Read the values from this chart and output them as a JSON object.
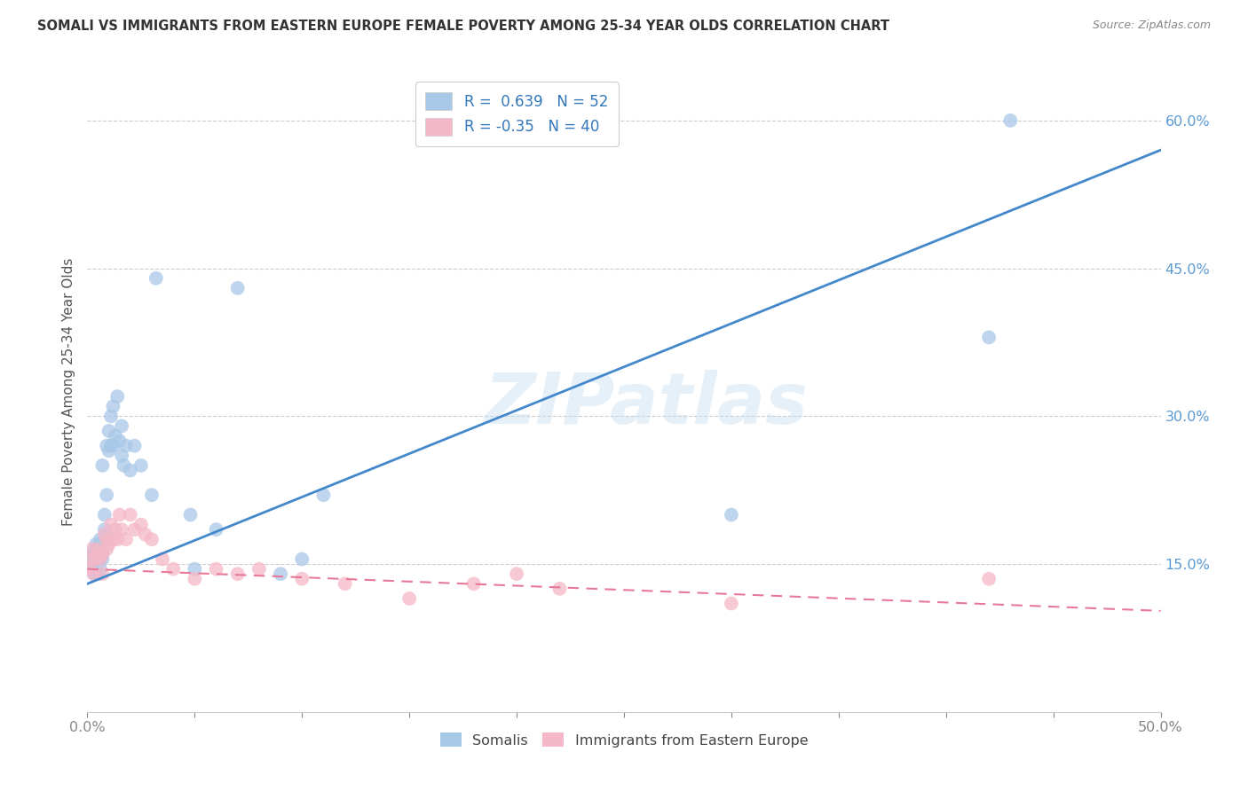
{
  "title": "SOMALI VS IMMIGRANTS FROM EASTERN EUROPE FEMALE POVERTY AMONG 25-34 YEAR OLDS CORRELATION CHART",
  "source": "Source: ZipAtlas.com",
  "ylabel": "Female Poverty Among 25-34 Year Olds",
  "y_ticks_right": [
    "15.0%",
    "30.0%",
    "45.0%",
    "60.0%"
  ],
  "y_ticks_right_vals": [
    0.15,
    0.3,
    0.45,
    0.6
  ],
  "legend_label1": "Somalis",
  "legend_label2": "Immigrants from Eastern Europe",
  "R1": 0.639,
  "N1": 52,
  "R2": -0.35,
  "N2": 40,
  "blue_color": "#a8c8e8",
  "pink_color": "#f4b8c8",
  "blue_line_color": "#4488cc",
  "pink_line_color": "#e87898",
  "watermark": "ZIPatlas",
  "background_color": "#ffffff",
  "somali_x": [
    0.001,
    0.001,
    0.002,
    0.003,
    0.003,
    0.004,
    0.004,
    0.004,
    0.005,
    0.005,
    0.005,
    0.006,
    0.006,
    0.006,
    0.006,
    0.007,
    0.007,
    0.007,
    0.008,
    0.008,
    0.008,
    0.009,
    0.009,
    0.009,
    0.01,
    0.01,
    0.011,
    0.011,
    0.012,
    0.012,
    0.013,
    0.014,
    0.015,
    0.016,
    0.016,
    0.017,
    0.018,
    0.02,
    0.022,
    0.025,
    0.03,
    0.032,
    0.048,
    0.05,
    0.06,
    0.07,
    0.09,
    0.1,
    0.11,
    0.3,
    0.42,
    0.43
  ],
  "somali_y": [
    0.155,
    0.16,
    0.145,
    0.14,
    0.16,
    0.155,
    0.165,
    0.17,
    0.14,
    0.155,
    0.165,
    0.145,
    0.155,
    0.165,
    0.175,
    0.155,
    0.16,
    0.25,
    0.175,
    0.185,
    0.2,
    0.18,
    0.22,
    0.27,
    0.265,
    0.285,
    0.27,
    0.3,
    0.27,
    0.31,
    0.28,
    0.32,
    0.275,
    0.26,
    0.29,
    0.25,
    0.27,
    0.245,
    0.27,
    0.25,
    0.22,
    0.44,
    0.2,
    0.145,
    0.185,
    0.43,
    0.14,
    0.155,
    0.22,
    0.2,
    0.38,
    0.6
  ],
  "eastern_x": [
    0.001,
    0.002,
    0.002,
    0.003,
    0.004,
    0.005,
    0.005,
    0.006,
    0.007,
    0.007,
    0.008,
    0.009,
    0.009,
    0.01,
    0.011,
    0.012,
    0.013,
    0.014,
    0.015,
    0.016,
    0.018,
    0.02,
    0.022,
    0.025,
    0.027,
    0.03,
    0.035,
    0.04,
    0.05,
    0.06,
    0.07,
    0.08,
    0.1,
    0.12,
    0.15,
    0.18,
    0.2,
    0.22,
    0.3,
    0.42
  ],
  "eastern_y": [
    0.145,
    0.155,
    0.165,
    0.14,
    0.155,
    0.16,
    0.165,
    0.155,
    0.14,
    0.16,
    0.18,
    0.165,
    0.175,
    0.17,
    0.19,
    0.175,
    0.185,
    0.175,
    0.2,
    0.185,
    0.175,
    0.2,
    0.185,
    0.19,
    0.18,
    0.175,
    0.155,
    0.145,
    0.135,
    0.145,
    0.14,
    0.145,
    0.135,
    0.13,
    0.115,
    0.13,
    0.14,
    0.125,
    0.11,
    0.135
  ],
  "xlim": [
    0,
    0.5
  ],
  "ylim": [
    0,
    0.65
  ],
  "blue_line_m": 0.88,
  "blue_line_b": 0.13,
  "pink_line_m": -0.085,
  "pink_line_b": 0.145
}
